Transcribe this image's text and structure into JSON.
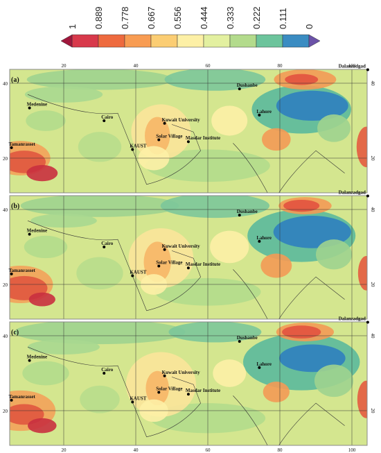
{
  "colorbar": {
    "ticks": [
      1,
      0.889,
      0.778,
      0.667,
      0.556,
      0.444,
      0.333,
      0.222,
      0.111,
      0
    ],
    "colors": [
      "#d8394b",
      "#ee6a3e",
      "#f89c52",
      "#fbcd73",
      "#fdf0a6",
      "#e3f0a0",
      "#b3db8c",
      "#6cc49c",
      "#3a8cc2"
    ],
    "under_color": "#a0173c",
    "over_color": "#6b52a8"
  },
  "lon_labels": [
    "20",
    "40",
    "60",
    "80",
    "100"
  ],
  "lat_labels": [
    "40",
    "20"
  ],
  "panels": [
    {
      "label": "(a)",
      "cities": [
        "Medenine",
        "Cairo",
        "Tamanrasset",
        "KAUST",
        "Kuwait University",
        "Solar Village",
        "Masdar Institute",
        "Dushanbe",
        "Lahore",
        "Dalanzadgad"
      ]
    },
    {
      "label": "(b)",
      "cities": [
        "Medenine",
        "Cairo",
        "Tamanrasset",
        "KAUST",
        "Kuwait University",
        "Solar Village",
        "Masdar Institute",
        "Dushanbe",
        "Lahore",
        "Dalanzadgad"
      ]
    },
    {
      "label": "(c)",
      "cities": [
        "Medenine",
        "Cairo",
        "Tamanrasset",
        "KAUST",
        "Kuwait University",
        "Solar Village",
        "Masdar Institute",
        "Dushanbe",
        "Lahore",
        "Dalanzadgad"
      ]
    }
  ]
}
